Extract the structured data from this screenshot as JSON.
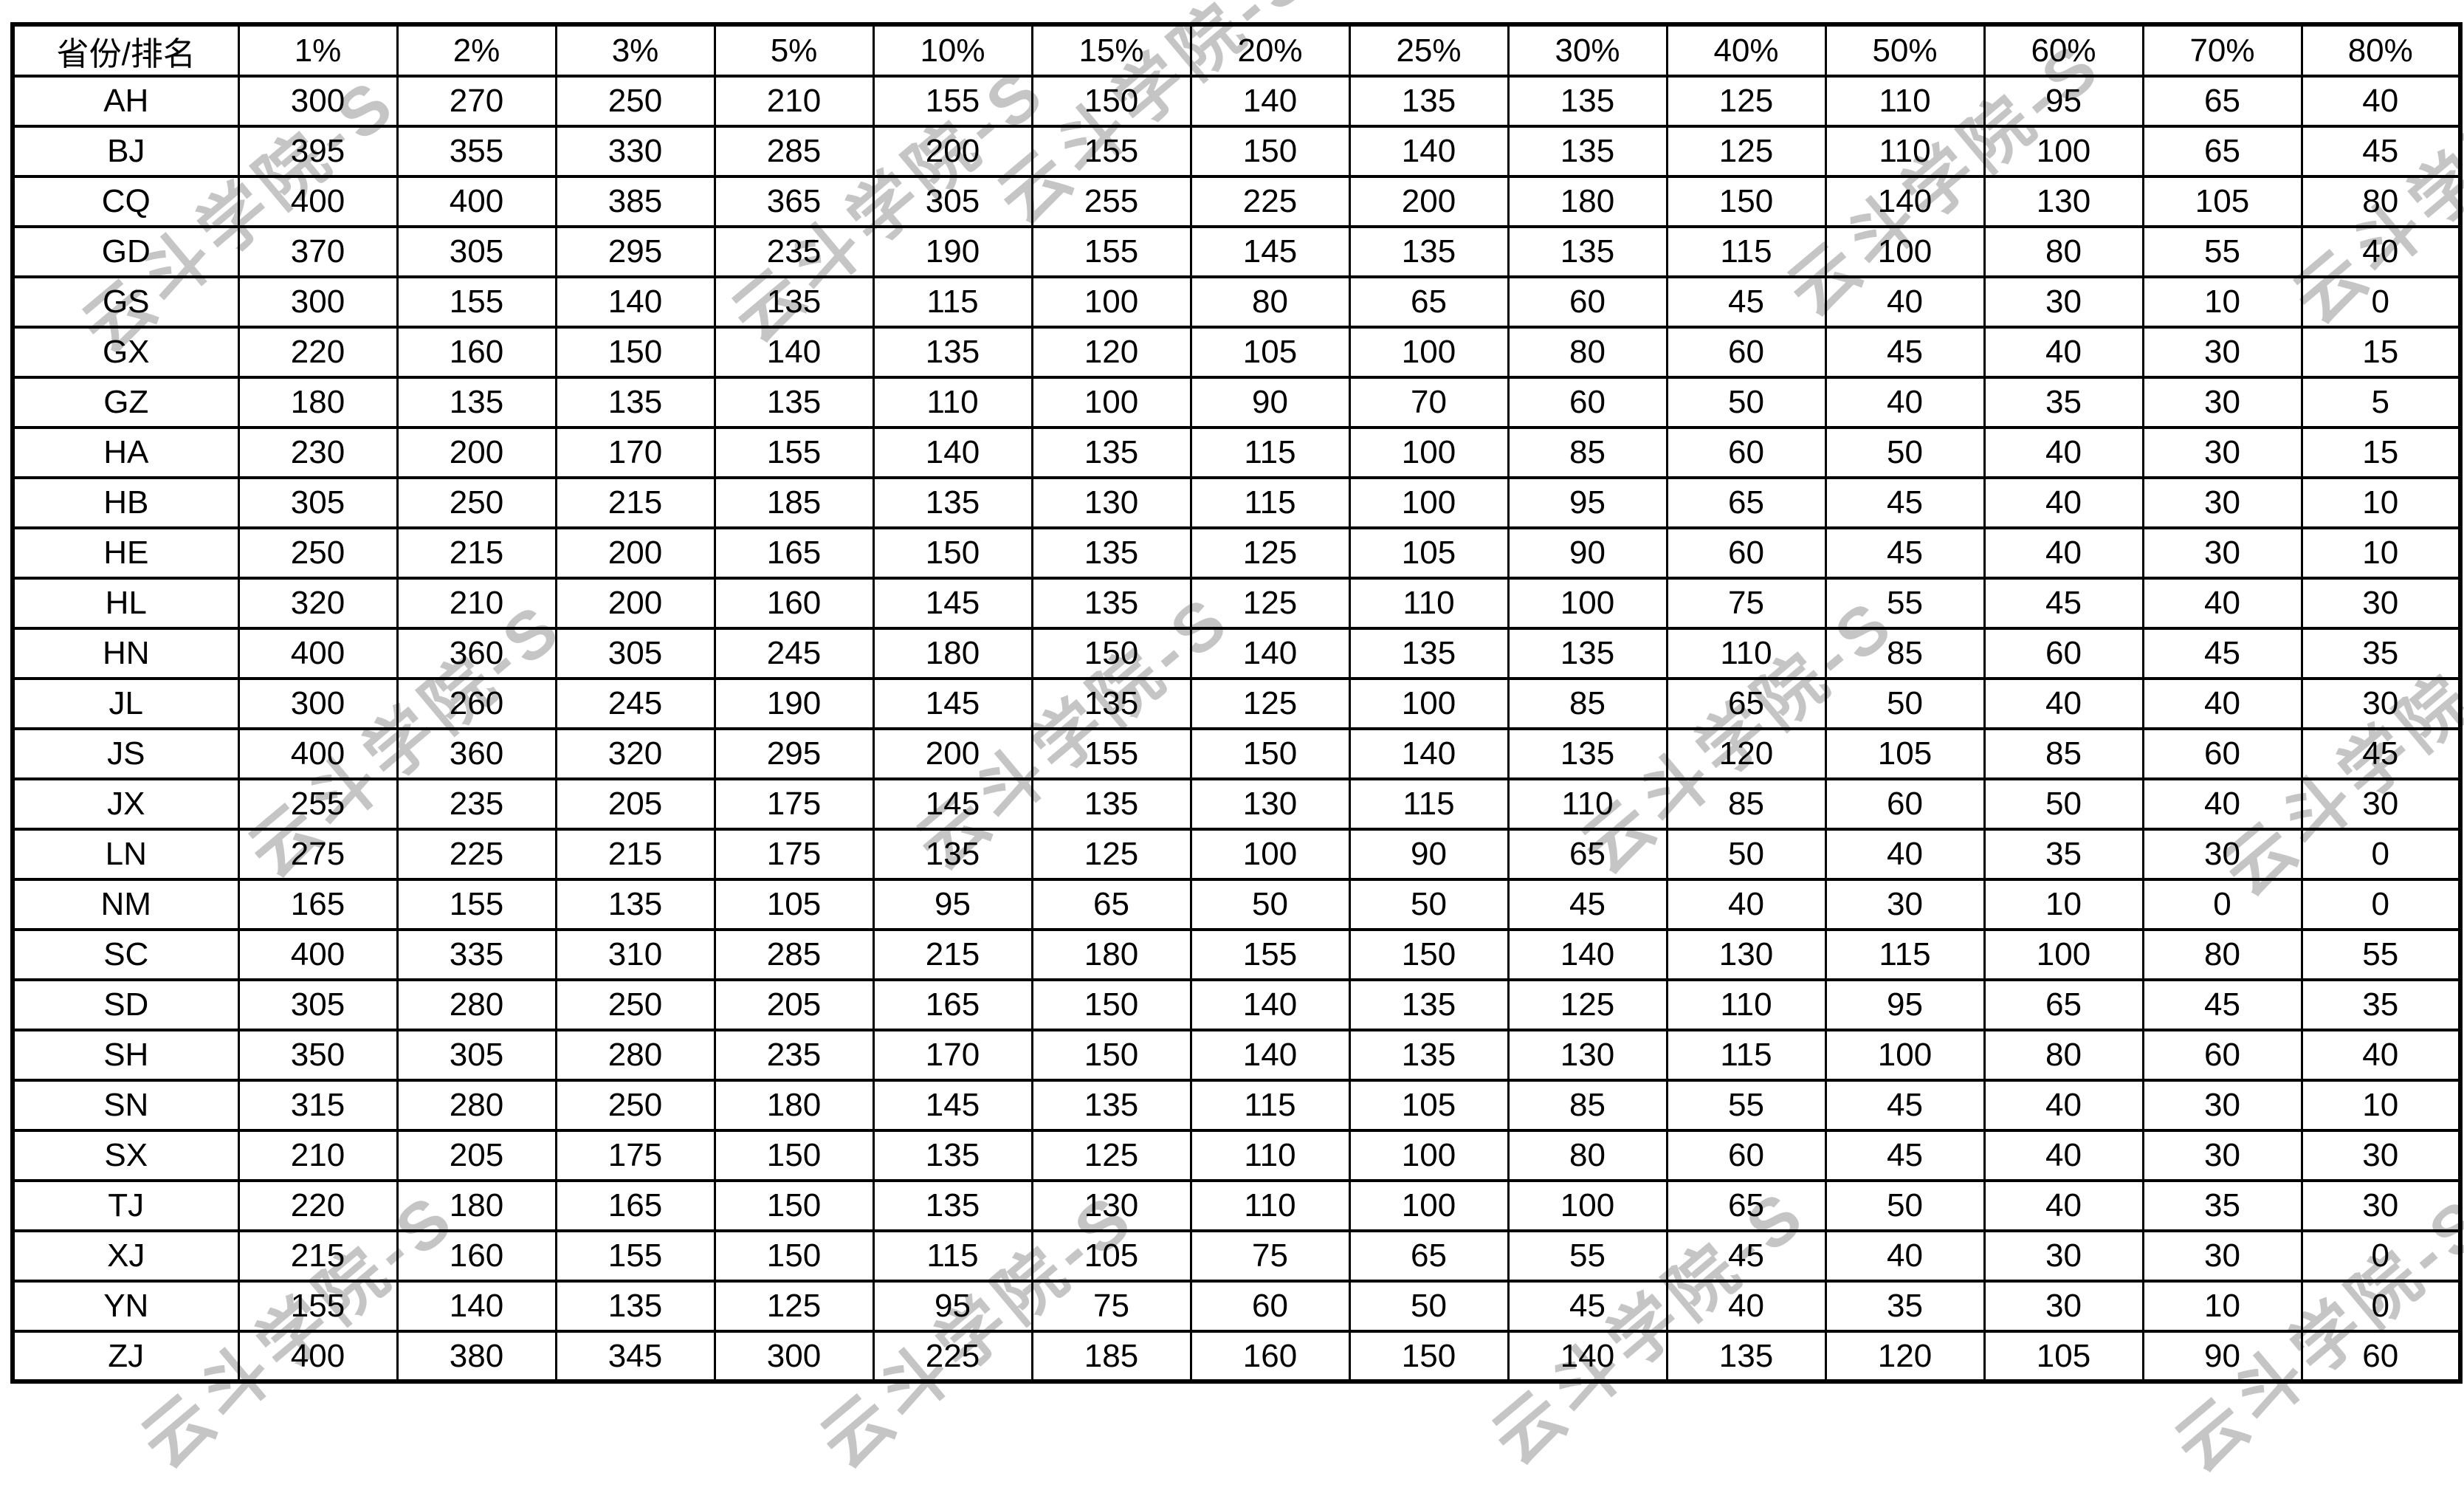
{
  "page": {
    "background_color": "#ffffff",
    "border_color": "#000000",
    "text_color": "#000000"
  },
  "watermark": {
    "text": "云斗学院-S",
    "color": "#c5c5c5"
  },
  "table": {
    "columns": [
      "省份/排名",
      "1%",
      "2%",
      "3%",
      "5%",
      "10%",
      "15%",
      "20%",
      "25%",
      "30%",
      "40%",
      "50%",
      "60%",
      "70%",
      "80%"
    ],
    "rows": [
      {
        "province": "AH",
        "values": [
          300,
          270,
          250,
          210,
          155,
          150,
          140,
          135,
          135,
          125,
          110,
          95,
          65,
          40
        ]
      },
      {
        "province": "BJ",
        "values": [
          395,
          355,
          330,
          285,
          200,
          155,
          150,
          140,
          135,
          125,
          110,
          100,
          65,
          45
        ]
      },
      {
        "province": "CQ",
        "values": [
          400,
          400,
          385,
          365,
          305,
          255,
          225,
          200,
          180,
          150,
          140,
          130,
          105,
          80
        ]
      },
      {
        "province": "GD",
        "values": [
          370,
          305,
          295,
          235,
          190,
          155,
          145,
          135,
          135,
          115,
          100,
          80,
          55,
          40
        ]
      },
      {
        "province": "GS",
        "values": [
          300,
          155,
          140,
          135,
          115,
          100,
          80,
          65,
          60,
          45,
          40,
          30,
          10,
          0
        ]
      },
      {
        "province": "GX",
        "values": [
          220,
          160,
          150,
          140,
          135,
          120,
          105,
          100,
          80,
          60,
          45,
          40,
          30,
          15
        ]
      },
      {
        "province": "GZ",
        "values": [
          180,
          135,
          135,
          135,
          110,
          100,
          90,
          70,
          60,
          50,
          40,
          35,
          30,
          5
        ]
      },
      {
        "province": "HA",
        "values": [
          230,
          200,
          170,
          155,
          140,
          135,
          115,
          100,
          85,
          60,
          50,
          40,
          30,
          15
        ]
      },
      {
        "province": "HB",
        "values": [
          305,
          250,
          215,
          185,
          135,
          130,
          115,
          100,
          95,
          65,
          45,
          40,
          30,
          10
        ]
      },
      {
        "province": "HE",
        "values": [
          250,
          215,
          200,
          165,
          150,
          135,
          125,
          105,
          90,
          60,
          45,
          40,
          30,
          10
        ]
      },
      {
        "province": "HL",
        "values": [
          320,
          210,
          200,
          160,
          145,
          135,
          125,
          110,
          100,
          75,
          55,
          45,
          40,
          30
        ]
      },
      {
        "province": "HN",
        "values": [
          400,
          360,
          305,
          245,
          180,
          150,
          140,
          135,
          135,
          110,
          85,
          60,
          45,
          35
        ]
      },
      {
        "province": "JL",
        "values": [
          300,
          260,
          245,
          190,
          145,
          135,
          125,
          100,
          85,
          65,
          50,
          40,
          40,
          30
        ]
      },
      {
        "province": "JS",
        "values": [
          400,
          360,
          320,
          295,
          200,
          155,
          150,
          140,
          135,
          120,
          105,
          85,
          60,
          45
        ]
      },
      {
        "province": "JX",
        "values": [
          255,
          235,
          205,
          175,
          145,
          135,
          130,
          115,
          110,
          85,
          60,
          50,
          40,
          30
        ]
      },
      {
        "province": "LN",
        "values": [
          275,
          225,
          215,
          175,
          135,
          125,
          100,
          90,
          65,
          50,
          40,
          35,
          30,
          0
        ]
      },
      {
        "province": "NM",
        "values": [
          165,
          155,
          135,
          105,
          95,
          65,
          50,
          50,
          45,
          40,
          30,
          10,
          0,
          0
        ]
      },
      {
        "province": "SC",
        "values": [
          400,
          335,
          310,
          285,
          215,
          180,
          155,
          150,
          140,
          130,
          115,
          100,
          80,
          55
        ]
      },
      {
        "province": "SD",
        "values": [
          305,
          280,
          250,
          205,
          165,
          150,
          140,
          135,
          125,
          110,
          95,
          65,
          45,
          35
        ]
      },
      {
        "province": "SH",
        "values": [
          350,
          305,
          280,
          235,
          170,
          150,
          140,
          135,
          130,
          115,
          100,
          80,
          60,
          40
        ]
      },
      {
        "province": "SN",
        "values": [
          315,
          280,
          250,
          180,
          145,
          135,
          115,
          105,
          85,
          55,
          45,
          40,
          30,
          10
        ]
      },
      {
        "province": "SX",
        "values": [
          210,
          205,
          175,
          150,
          135,
          125,
          110,
          100,
          80,
          60,
          45,
          40,
          30,
          30
        ]
      },
      {
        "province": "TJ",
        "values": [
          220,
          180,
          165,
          150,
          135,
          130,
          110,
          100,
          100,
          65,
          50,
          40,
          35,
          30
        ]
      },
      {
        "province": "XJ",
        "values": [
          215,
          160,
          155,
          150,
          115,
          105,
          75,
          65,
          55,
          45,
          40,
          30,
          30,
          0
        ]
      },
      {
        "province": "YN",
        "values": [
          155,
          140,
          135,
          125,
          95,
          75,
          60,
          50,
          45,
          40,
          35,
          30,
          10,
          0
        ]
      },
      {
        "province": "ZJ",
        "values": [
          400,
          380,
          345,
          300,
          225,
          185,
          160,
          150,
          140,
          135,
          120,
          105,
          90,
          60
        ]
      }
    ]
  }
}
